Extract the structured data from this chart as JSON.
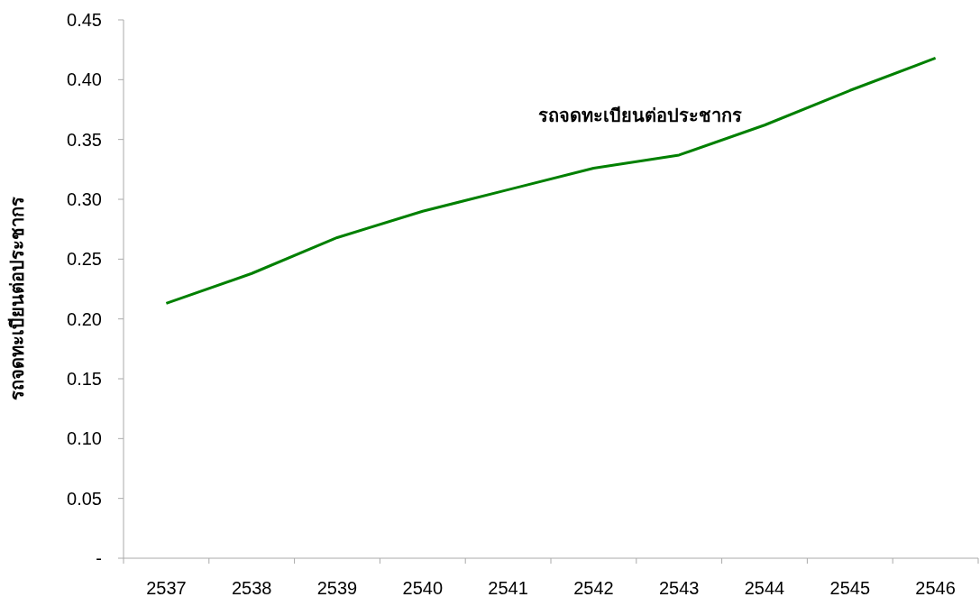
{
  "chart_data": {
    "type": "line",
    "ylabel": "รถจดทะเบียนต่อประชากร",
    "categories": [
      "2537",
      "2538",
      "2539",
      "2540",
      "2541",
      "2542",
      "2543",
      "2544",
      "2545",
      "2546"
    ],
    "series": [
      {
        "name": "รถจดทะเบียนต่อประชากร",
        "color": "#008000",
        "values": [
          0.213,
          0.238,
          0.268,
          0.29,
          0.308,
          0.326,
          0.337,
          0.362,
          0.391,
          0.418
        ]
      }
    ],
    "ylim": [
      0,
      0.45
    ],
    "yticks": [
      {
        "value": 0,
        "label": "-"
      },
      {
        "value": 0.05,
        "label": "0.05"
      },
      {
        "value": 0.1,
        "label": "0.10"
      },
      {
        "value": 0.15,
        "label": "0.15"
      },
      {
        "value": 0.2,
        "label": "0.20"
      },
      {
        "value": 0.25,
        "label": "0.25"
      },
      {
        "value": 0.3,
        "label": "0.30"
      },
      {
        "value": 0.35,
        "label": "0.35"
      },
      {
        "value": 0.4,
        "label": "0.40"
      },
      {
        "value": 0.45,
        "label": "0.45"
      }
    ],
    "grid": false,
    "marker": "none",
    "line_style": "solid"
  }
}
